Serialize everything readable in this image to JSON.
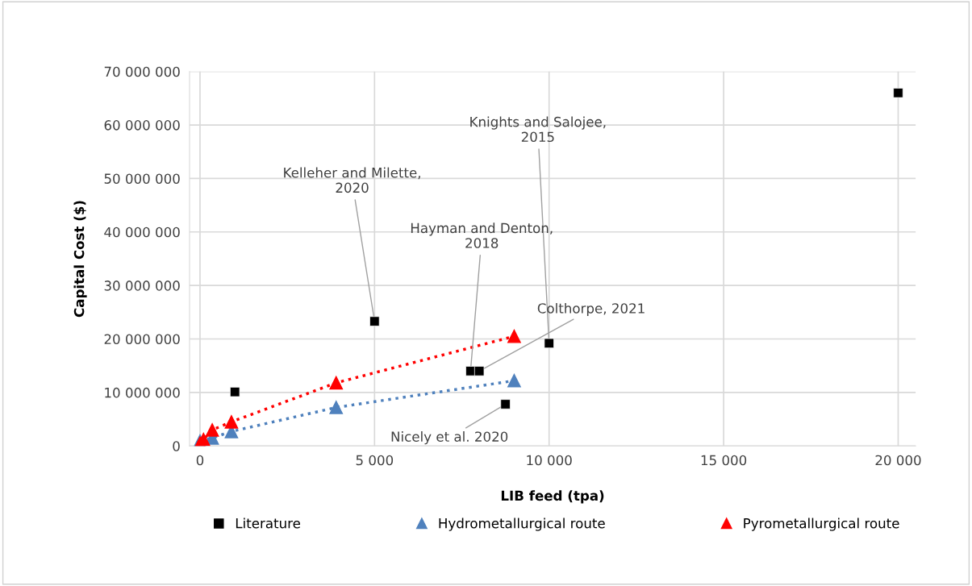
{
  "chart_data": {
    "type": "scatter",
    "xlabel": "LIB feed (tpa)",
    "ylabel": "Capital Cost ($)",
    "xlim": [
      -300,
      20500
    ],
    "xticks": [
      {
        "value": 0,
        "label": "0"
      },
      {
        "value": 5000,
        "label": "5 000"
      },
      {
        "value": 10000,
        "label": "10 000"
      },
      {
        "value": 15000,
        "label": "15 000"
      },
      {
        "value": 20000,
        "label": "20 000"
      }
    ],
    "ylim": [
      0,
      70000000
    ],
    "yticks": [
      {
        "value": 0,
        "label": "0"
      },
      {
        "value": 10000000,
        "label": "10 000 000"
      },
      {
        "value": 20000000,
        "label": "20 000 000"
      },
      {
        "value": 30000000,
        "label": "30 000 000"
      },
      {
        "value": 40000000,
        "label": "40 000 000"
      },
      {
        "value": 50000000,
        "label": "50 000 000"
      },
      {
        "value": 60000000,
        "label": "60 000 000"
      },
      {
        "value": 70000000,
        "label": "70 000 000"
      }
    ],
    "grid": true,
    "legend": "bottom",
    "series": [
      {
        "name": "Literature",
        "marker": "square",
        "color": "#000000",
        "x": [
          1000,
          5000,
          7750,
          8000,
          8750,
          10000,
          20000
        ],
        "values": [
          10100000,
          23300000,
          14000000,
          14000000,
          7800000,
          19200000,
          66000000
        ]
      },
      {
        "name": "Hydrometallurgical route",
        "type": "line",
        "marker": "triangle",
        "line_style": "dotted",
        "color": "#4f81bd",
        "x": [
          0,
          350,
          900,
          3900,
          9000
        ],
        "values": [
          900000,
          1500000,
          2700000,
          7200000,
          12200000
        ]
      },
      {
        "name": "Pyrometallurgical route",
        "type": "line",
        "marker": "triangle",
        "line_style": "dotted",
        "color": "#ff0000",
        "x": [
          0,
          100,
          350,
          900,
          3900,
          9000
        ],
        "values": [
          500000,
          1200000,
          3000000,
          4500000,
          11800000,
          20500000
        ]
      }
    ],
    "annotations": [
      {
        "text": "Kelleher and Milette,\n2020",
        "x": 5000,
        "y": 23300000
      },
      {
        "text": "Knights and Salojee,\n2015",
        "x": 10000,
        "y": 19200000
      },
      {
        "text": "Hayman and Denton,\n2018",
        "x": 7750,
        "y": 14000000
      },
      {
        "text": "Colthorpe, 2021",
        "x": 8000,
        "y": 14000000
      },
      {
        "text": "Nicely et al. 2020",
        "x": 8750,
        "y": 7800000
      }
    ]
  }
}
